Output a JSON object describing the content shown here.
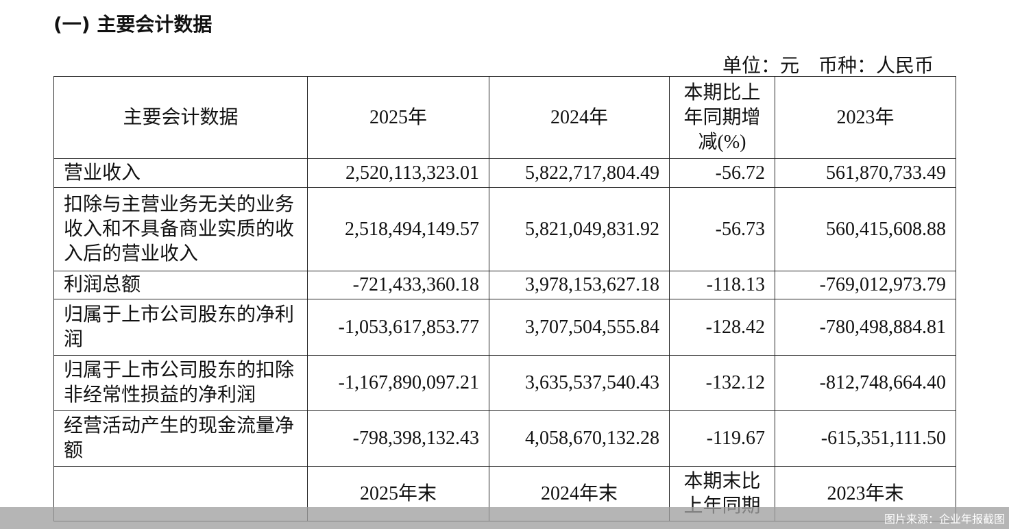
{
  "section_title": "(一) 主要会计数据",
  "unit_note": "单位：元　币种：人民币",
  "table": {
    "headers": [
      "主要会计数据",
      "2025年",
      "2024年",
      "本期比上年同期增减(%)",
      "2023年"
    ],
    "rows": [
      [
        "营业收入",
        "2,520,113,323.01",
        "5,822,717,804.49",
        "-56.72",
        "561,870,733.49"
      ],
      [
        "扣除与主营业务无关的业务收入和不具备商业实质的收入后的营业收入",
        "2,518,494,149.57",
        "5,821,049,831.92",
        "-56.73",
        "560,415,608.88"
      ],
      [
        "利润总额",
        "-721,433,360.18",
        "3,978,153,627.18",
        "-118.13",
        "-769,012,973.79"
      ],
      [
        "归属于上市公司股东的净利润",
        "-1,053,617,853.77",
        "3,707,504,555.84",
        "-128.42",
        "-780,498,884.81"
      ],
      [
        "归属于上市公司股东的扣除非经常性损益的净利润",
        "-1,167,890,097.21",
        "3,635,537,540.43",
        "-132.12",
        "-812,748,664.40"
      ],
      [
        "经营活动产生的现金流量净额",
        "-798,398,132.43",
        "4,058,670,132.28",
        "-119.67",
        "-615,351,111.50"
      ]
    ],
    "headers2": [
      "",
      "2025年末",
      "2024年末",
      "本期末比上年同期",
      "2023年末"
    ]
  },
  "image_source": "图片来源：企业年报截图"
}
